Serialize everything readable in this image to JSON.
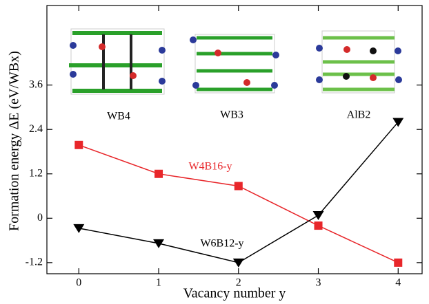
{
  "chart_data": {
    "type": "line",
    "x_label": "Vacancy  number y",
    "y_label": "Formation energy  ΔE  (eV/WBx)",
    "annotations": [
      "WB4",
      "WB3",
      "AlB2"
    ],
    "x": [
      0,
      1,
      2,
      3,
      4
    ],
    "series": [
      {
        "name": "W4B16-y",
        "color": "#e8262a",
        "marker": "square",
        "values": [
          1.98,
          1.2,
          0.87,
          -0.2,
          -1.2
        ]
      },
      {
        "name": "W6B12-y",
        "color": "#000000",
        "marker": "triangle-down",
        "values": [
          -0.27,
          -0.68,
          -1.2,
          0.08,
          2.6
        ]
      }
    ],
    "xlim": [
      -0.4,
      4.3
    ],
    "xticks": [
      0,
      1,
      2,
      3,
      4
    ],
    "ylim": [
      -1.5,
      5.75
    ],
    "yticks": [
      -1.2,
      0,
      1.2,
      2.4,
      3.6
    ]
  }
}
